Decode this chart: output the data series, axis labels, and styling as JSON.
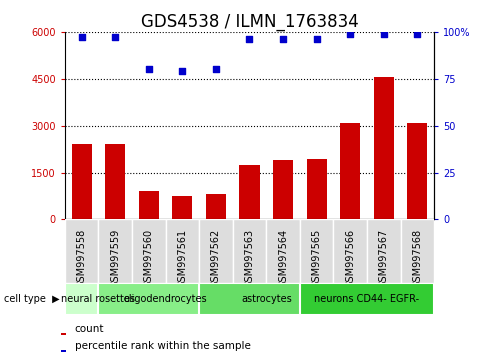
{
  "title": "GDS4538 / ILMN_1763834",
  "samples": [
    "GSM997558",
    "GSM997559",
    "GSM997560",
    "GSM997561",
    "GSM997562",
    "GSM997563",
    "GSM997564",
    "GSM997565",
    "GSM997566",
    "GSM997567",
    "GSM997568"
  ],
  "counts": [
    2400,
    2400,
    900,
    750,
    800,
    1750,
    1900,
    1950,
    3100,
    4550,
    3100
  ],
  "percentile": [
    97,
    97,
    80,
    79,
    80,
    96,
    96,
    96,
    99,
    99,
    99
  ],
  "ylim_left": [
    0,
    6000
  ],
  "ylim_right": [
    0,
    100
  ],
  "yticks_left": [
    0,
    1500,
    3000,
    4500,
    6000
  ],
  "yticks_right": [
    0,
    25,
    50,
    75,
    100
  ],
  "bar_color": "#cc0000",
  "dot_color": "#0000cc",
  "bg_color": "#ffffff",
  "ylabel_left_color": "#cc0000",
  "ylabel_right_color": "#0000cc",
  "title_fontsize": 12,
  "tick_fontsize": 7,
  "label_fontsize": 7.5,
  "cell_type_fontsize": 7,
  "dotted_grid_lines": [
    1500,
    3000,
    4500,
    6000
  ],
  "group_spans": [
    {
      "label": "neural rosettes",
      "xstart": 0,
      "xend": 1,
      "color": "#ccffcc"
    },
    {
      "label": "oligodendrocytes",
      "xstart": 1,
      "xend": 4,
      "color": "#88ee88"
    },
    {
      "label": "astrocytes",
      "xstart": 4,
      "xend": 7,
      "color": "#66dd66"
    },
    {
      "label": "neurons CD44- EGFR-",
      "xstart": 7,
      "xend": 10,
      "color": "#33cc33"
    }
  ],
  "legend_items": [
    {
      "color": "#cc0000",
      "label": "count"
    },
    {
      "color": "#0000cc",
      "label": "percentile rank within the sample"
    }
  ]
}
